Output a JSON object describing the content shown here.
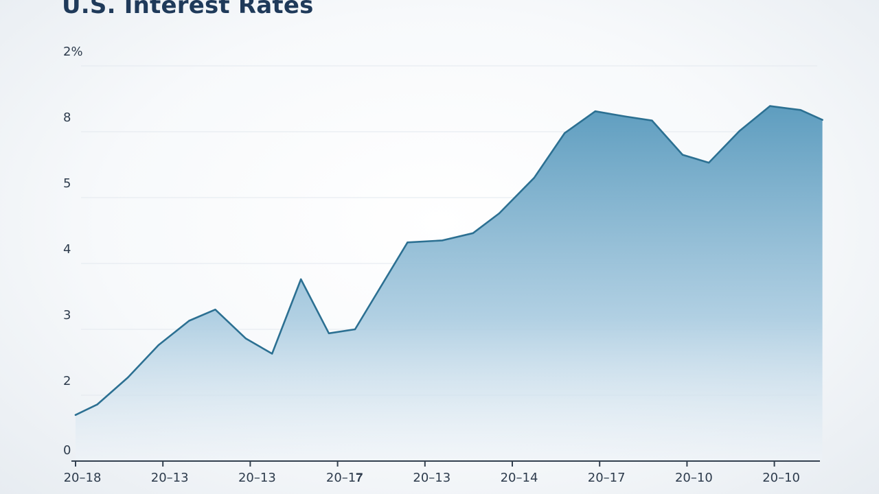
{
  "chart_data": {
    "type": "area",
    "title": "U.S. Interest Rates",
    "y_tick_labels": [
      "0",
      "2",
      "3",
      "4",
      "5",
      "8",
      "2%"
    ],
    "x_tick_labels": [
      "20–18",
      "20–13",
      "20–13",
      "20–1𝟕",
      "20–13",
      "20–14",
      "20–17",
      "20–10",
      "20–10"
    ],
    "ylim": [
      0,
      6
    ],
    "grid": true,
    "legend": "none",
    "series": [
      {
        "values": [
          [
            0.0,
            0.7
          ],
          [
            0.25,
            0.86
          ],
          [
            0.6,
            1.27
          ],
          [
            0.95,
            1.76
          ],
          [
            1.3,
            2.13
          ],
          [
            1.6,
            2.3
          ],
          [
            1.95,
            1.86
          ],
          [
            2.25,
            1.63
          ],
          [
            2.58,
            2.76
          ],
          [
            2.9,
            1.94
          ],
          [
            3.2,
            2.0
          ],
          [
            3.8,
            3.32
          ],
          [
            4.2,
            3.35
          ],
          [
            4.55,
            3.46
          ],
          [
            4.85,
            3.76
          ],
          [
            5.25,
            4.3
          ],
          [
            5.6,
            4.98
          ],
          [
            5.95,
            5.31
          ],
          [
            6.3,
            5.23
          ],
          [
            6.6,
            5.17
          ],
          [
            6.95,
            4.65
          ],
          [
            7.25,
            4.53
          ],
          [
            7.6,
            5.01
          ],
          [
            7.95,
            5.39
          ],
          [
            8.3,
            5.33
          ],
          [
            8.55,
            5.18
          ]
        ]
      }
    ],
    "colors": {
      "line": "#2c7092",
      "fill_top": "#5e9dbf",
      "fill_bottom": "#eef3f8",
      "grid": "#e3e8ee",
      "axis": "#33404f"
    }
  }
}
